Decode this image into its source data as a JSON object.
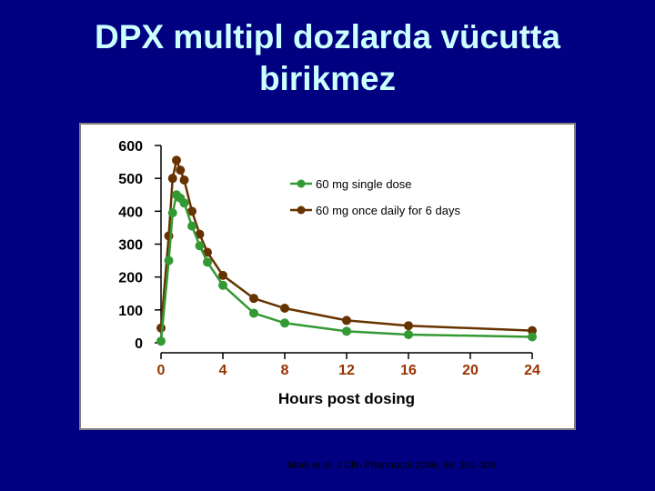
{
  "slide": {
    "title_line1": "DPX multipl dozlarda vücutta",
    "title_line2": "birikmez",
    "citation": "Modi et al. J Clin Pharmacol 2006; 46: 301-309"
  },
  "chart_data": {
    "type": "line",
    "title": "",
    "xlabel": "Hours post dosing",
    "ylabel": "",
    "xlim": [
      0,
      24
    ],
    "ylim": [
      0,
      600
    ],
    "x_ticks": [
      0,
      4,
      8,
      12,
      16,
      20,
      24
    ],
    "x_tick_labels": [
      "0",
      "4",
      "8",
      "12",
      "16",
      "20",
      "24"
    ],
    "y_ticks": [
      0,
      100,
      200,
      300,
      400,
      500,
      600
    ],
    "y_tick_labels": [
      "0",
      "100",
      "200",
      "300",
      "400",
      "500",
      "600"
    ],
    "grid": false,
    "legend_position": "top-right",
    "colors": {
      "axis_tick_x": "#993300",
      "axis_tick_y": "#000000"
    },
    "series": [
      {
        "name": "60 mg single dose",
        "color": "#339933",
        "points": [
          [
            0,
            5
          ],
          [
            0.5,
            250
          ],
          [
            0.75,
            395
          ],
          [
            1,
            450
          ],
          [
            1.25,
            440
          ],
          [
            1.5,
            425
          ],
          [
            2,
            355
          ],
          [
            2.5,
            295
          ],
          [
            3,
            245
          ],
          [
            4,
            175
          ],
          [
            6,
            90
          ],
          [
            8,
            60
          ],
          [
            12,
            35
          ],
          [
            16,
            25
          ],
          [
            24,
            18
          ]
        ]
      },
      {
        "name": "60 mg once daily for 6 days",
        "color": "#663300",
        "points": [
          [
            0,
            45
          ],
          [
            0.5,
            325
          ],
          [
            0.75,
            500
          ],
          [
            1,
            555
          ],
          [
            1.25,
            525
          ],
          [
            1.5,
            495
          ],
          [
            2,
            400
          ],
          [
            2.5,
            330
          ],
          [
            3,
            275
          ],
          [
            4,
            205
          ],
          [
            6,
            135
          ],
          [
            8,
            105
          ],
          [
            12,
            68
          ],
          [
            16,
            52
          ],
          [
            24,
            37
          ]
        ]
      }
    ]
  }
}
